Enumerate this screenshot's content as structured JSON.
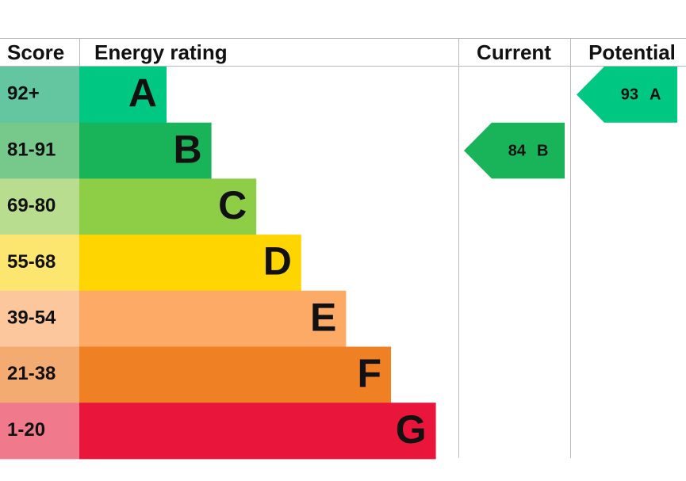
{
  "header": {
    "score": "Score",
    "rating": "Energy rating",
    "current": "Current",
    "potential": "Potential"
  },
  "bands": [
    {
      "score": "92+",
      "letter": "A",
      "color": "#00c781",
      "score_color": "#63c6a0"
    },
    {
      "score": "81-91",
      "letter": "B",
      "color": "#19b459",
      "score_color": "#76c98b"
    },
    {
      "score": "69-80",
      "letter": "C",
      "color": "#8dce46",
      "score_color": "#b8dd8e"
    },
    {
      "score": "55-68",
      "letter": "D",
      "color": "#ffd500",
      "score_color": "#fde66f"
    },
    {
      "score": "39-54",
      "letter": "E",
      "color": "#fcaa65",
      "score_color": "#fdc79e"
    },
    {
      "score": "21-38",
      "letter": "F",
      "color": "#ef8023",
      "score_color": "#f4ab72"
    },
    {
      "score": "1-20",
      "letter": "G",
      "color": "#e9153b",
      "score_color": "#f07a8b"
    }
  ],
  "current": {
    "value": 84,
    "letter": "B"
  },
  "potential": {
    "value": 93,
    "letter": "A"
  }
}
